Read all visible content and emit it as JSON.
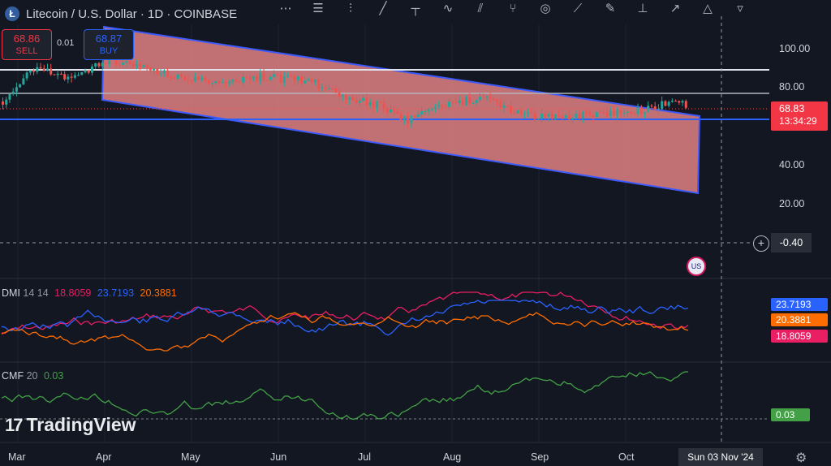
{
  "header": {
    "coin_letter": "Ł",
    "title": "Litecoin / U.S. Dollar · 1D · COINBASE"
  },
  "toolbar": {
    "tools": [
      {
        "icon": "scatter-icon",
        "glyph": "⋯"
      },
      {
        "icon": "fib-retracement-icon",
        "glyph": "☰"
      },
      {
        "icon": "candles-tool-icon",
        "glyph": "⫶"
      },
      {
        "icon": "trend-line-icon",
        "glyph": "╱"
      },
      {
        "icon": "vertical-line-icon",
        "glyph": "┬"
      },
      {
        "icon": "path-icon",
        "glyph": "∿"
      },
      {
        "icon": "parallel-channel-icon",
        "glyph": "⫽"
      },
      {
        "icon": "pitchfork-icon",
        "glyph": "⑂"
      },
      {
        "icon": "cycle-icon",
        "glyph": "◎"
      },
      {
        "icon": "ray-icon",
        "glyph": "⟋"
      },
      {
        "icon": "brush-icon",
        "glyph": "✎"
      },
      {
        "icon": "anchor-icon",
        "glyph": "⊥"
      },
      {
        "icon": "arrow-icon",
        "glyph": "↗"
      },
      {
        "icon": "triangle-icon",
        "glyph": "△"
      },
      {
        "icon": "more-tools-icon",
        "glyph": "▿"
      }
    ]
  },
  "trade": {
    "sell_price": "68.86",
    "sell_label": "SELL",
    "spread": "0.01",
    "buy_price": "68.87",
    "buy_label": "BUY"
  },
  "price_axis": {
    "labels": [
      "100.00",
      "80.00",
      "40.00",
      "20.00"
    ],
    "current_price": "68.83",
    "countdown": "13:34:29",
    "crosshair_value": "-0.40"
  },
  "dmi": {
    "name": "DMI",
    "params": "14 14",
    "plus_di": "18.8059",
    "minus_di": "23.7193",
    "adx": "20.3881"
  },
  "cmf": {
    "name": "CMF",
    "params": "20",
    "value": "0.03"
  },
  "time_axis": {
    "months": [
      "Mar",
      "Apr",
      "May",
      "Jun",
      "Jul",
      "Aug",
      "Sep",
      "Oct"
    ],
    "crosshair_date": "Sun 03 Nov '24"
  },
  "branding": {
    "logo_text": "TradingView",
    "logo_mark": "17"
  },
  "colors": {
    "background": "#131722",
    "up": "#26a69a",
    "down": "#ef5350",
    "channel_fill": "#f28b8b",
    "channel_border": "#3d5afe",
    "sell": "#f23645",
    "buy": "#2962ff",
    "plus_di": "#e91e63",
    "minus_di": "#2962ff",
    "adx": "#ff6d00",
    "cmf": "#43a047"
  }
}
